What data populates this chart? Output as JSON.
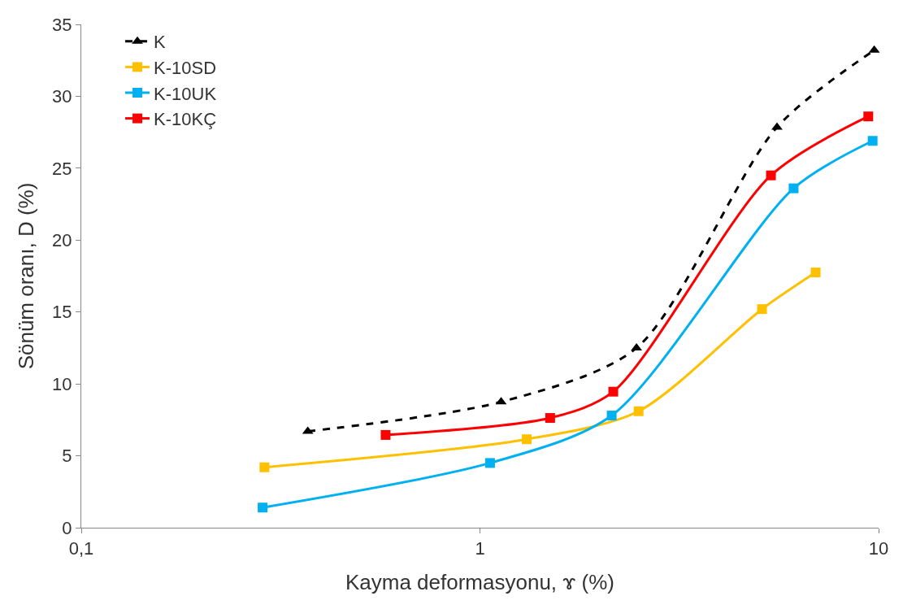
{
  "chart_data": {
    "type": "line",
    "xlabel": "Kayma deformasyonu, ɤ (%)",
    "ylabel": "Sönüm oranı, D (%)",
    "log": "x",
    "grid": false,
    "legend": "top left",
    "xlim": [
      0.1,
      10
    ],
    "xticks": [
      {
        "value": 0.1,
        "label": "0,1"
      },
      1,
      10
    ],
    "ylim": [
      0,
      35
    ],
    "yticks": [
      0,
      5,
      10,
      15,
      20,
      25,
      30,
      35
    ],
    "series": [
      {
        "name": "K",
        "color": "#000000",
        "marker": "triangle",
        "line_style": "dashed",
        "x": [
          0.37,
          1.13,
          2.47,
          5.56,
          9.75
        ],
        "values": [
          6.7,
          8.75,
          12.5,
          27.85,
          33.2
        ]
      },
      {
        "name": "K-10SD",
        "color": "#ffc000",
        "marker": "square",
        "line_style": "solid",
        "x": [
          0.288,
          1.31,
          2.5,
          5.1,
          6.95
        ],
        "values": [
          4.2,
          6.15,
          8.1,
          15.2,
          17.75
        ]
      },
      {
        "name": "K-10UK",
        "color": "#00b0f0",
        "marker": "square",
        "line_style": "solid",
        "x": [
          0.285,
          1.06,
          2.14,
          6.12,
          9.66
        ],
        "values": [
          1.4,
          4.5,
          7.8,
          23.6,
          26.9
        ]
      },
      {
        "name": "K-10KÇ",
        "color": "#ff0000",
        "marker": "square",
        "line_style": "solid",
        "x": [
          0.58,
          1.5,
          2.16,
          5.37,
          9.42
        ],
        "values": [
          6.45,
          7.63,
          9.46,
          24.5,
          28.6
        ]
      }
    ]
  }
}
